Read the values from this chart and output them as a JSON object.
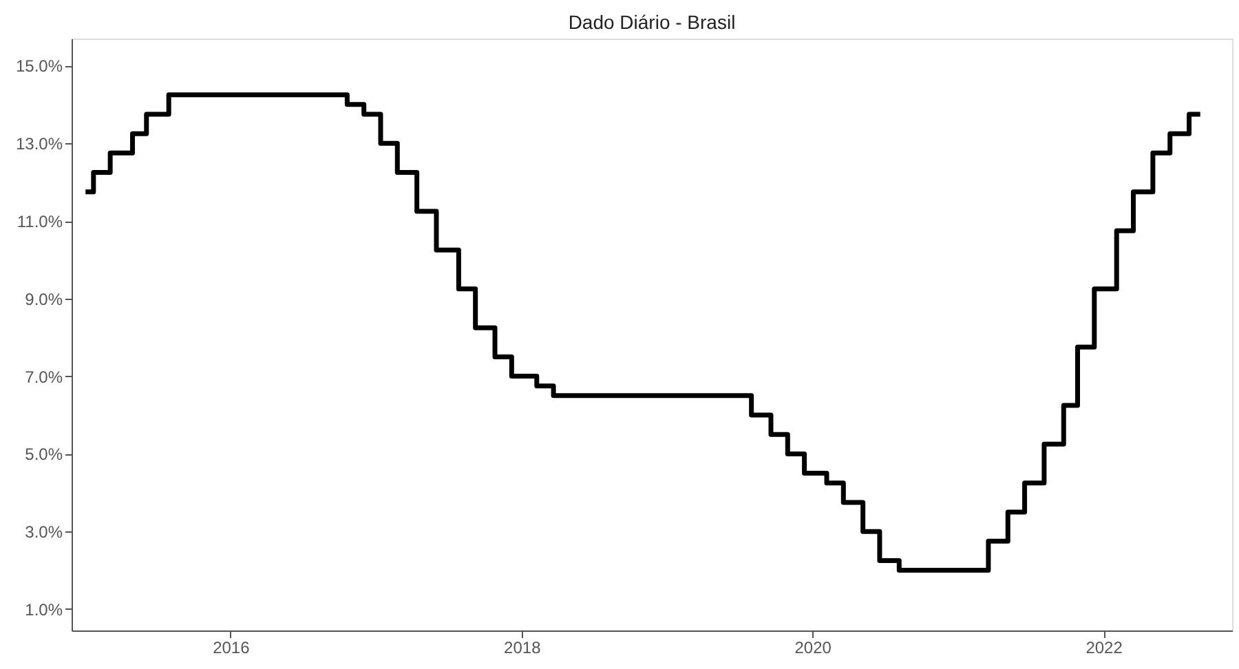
{
  "chart_data": {
    "type": "step",
    "title": "Dado Diário - Brasil",
    "x": [
      "2015-01-02",
      "2015-01-22",
      "2015-03-05",
      "2015-04-30",
      "2015-06-04",
      "2015-07-30",
      "2016-10-20",
      "2016-12-01",
      "2017-01-12",
      "2017-02-23",
      "2017-04-13",
      "2017-06-01",
      "2017-07-27",
      "2017-09-07",
      "2017-10-26",
      "2017-12-07",
      "2018-02-08",
      "2018-03-22",
      "2019-08-01",
      "2019-09-19",
      "2019-10-31",
      "2019-12-12",
      "2020-02-06",
      "2020-03-19",
      "2020-05-07",
      "2020-06-18",
      "2020-08-06",
      "2021-03-18",
      "2021-05-06",
      "2021-06-17",
      "2021-08-05",
      "2021-09-23",
      "2021-10-28",
      "2021-12-09",
      "2022-02-03",
      "2022-03-17",
      "2022-05-05",
      "2022-06-17",
      "2022-08-04",
      "2022-09-01"
    ],
    "series": [
      {
        "color": "#000000",
        "values": [
          11.75,
          12.25,
          12.75,
          13.25,
          13.75,
          14.25,
          14.0,
          13.75,
          13.0,
          12.25,
          11.25,
          10.25,
          9.25,
          8.25,
          7.5,
          7.0,
          6.75,
          6.5,
          6.0,
          5.5,
          5.0,
          4.5,
          4.25,
          3.75,
          3.0,
          2.25,
          2.0,
          2.75,
          3.5,
          4.25,
          5.25,
          6.25,
          7.75,
          9.25,
          10.75,
          11.75,
          12.75,
          13.25,
          13.75,
          13.75
        ]
      }
    ],
    "xlim": [
      "2014-11-28",
      "2022-11-20"
    ],
    "ylim": [
      0.45,
      15.7
    ],
    "xticks": [
      {
        "value": "2016-01-01",
        "label": "2016"
      },
      {
        "value": "2018-01-01",
        "label": "2018"
      },
      {
        "value": "2020-01-01",
        "label": "2020"
      },
      {
        "value": "2022-01-01",
        "label": "2022"
      }
    ],
    "yticks": [
      {
        "value": 1,
        "label": "1.0%"
      },
      {
        "value": 3,
        "label": "3.0%"
      },
      {
        "value": 5,
        "label": "5.0%"
      },
      {
        "value": 7,
        "label": "7.0%"
      },
      {
        "value": 9,
        "label": "9.0%"
      },
      {
        "value": 11,
        "label": "11.0%"
      },
      {
        "value": 13,
        "label": "13.0%"
      },
      {
        "value": 15,
        "label": "15.0%"
      }
    ],
    "grid": false,
    "line_style": "solid",
    "marker": "none"
  }
}
